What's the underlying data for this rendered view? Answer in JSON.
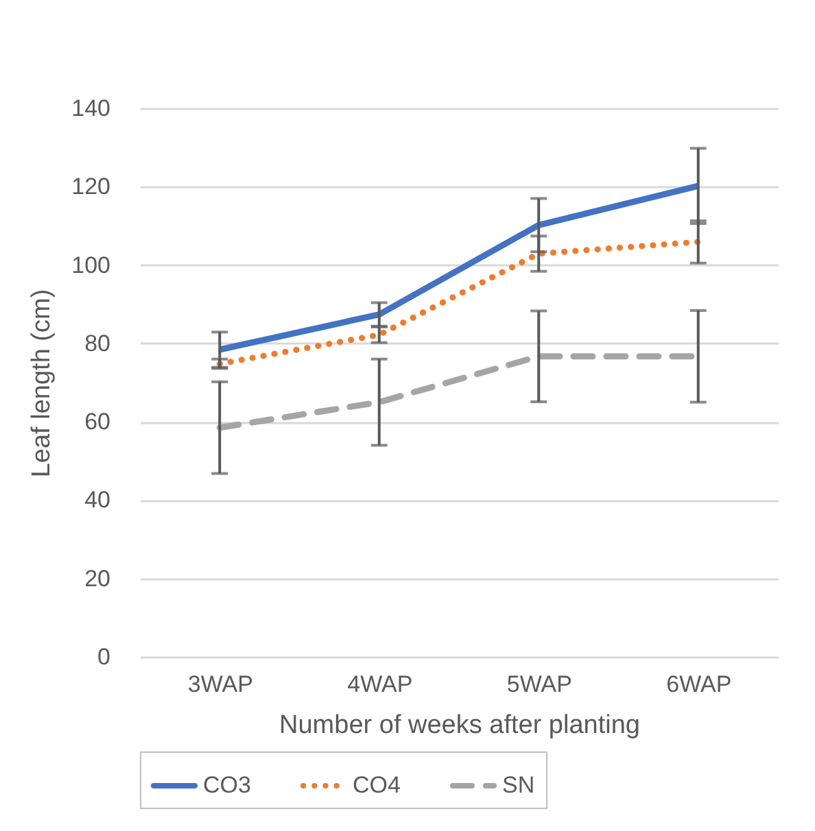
{
  "chart_data": {
    "type": "line",
    "xlabel": "Number of weeks after planting",
    "ylabel": "Leaf length (cm)",
    "categories": [
      "3WAP",
      "4WAP",
      "5WAP",
      "6WAP"
    ],
    "series": [
      {
        "name": "CO3",
        "color": "#4472c4",
        "line_style": "solid",
        "values": [
          78.4,
          87.4,
          110.2,
          120.2
        ],
        "errors": [
          4.5,
          3,
          6.8,
          9.6
        ]
      },
      {
        "name": "CO4",
        "color": "#ed7d31",
        "line_style": "dotted",
        "values": [
          74.8,
          82.2,
          102.9,
          105.9
        ],
        "errors": [
          1.2,
          2,
          4.5,
          5.4
        ]
      },
      {
        "name": "SN",
        "color": "#a5a5a5",
        "line_style": "dashed",
        "values": [
          58.5,
          65,
          76.7,
          76.7
        ],
        "errors": [
          11.7,
          11,
          11.6,
          11.7
        ]
      }
    ],
    "ylim": [
      0,
      140
    ],
    "yticks": [
      0,
      20,
      40,
      60,
      80,
      100,
      120,
      140
    ],
    "grid": "y",
    "legend": "bottom"
  }
}
